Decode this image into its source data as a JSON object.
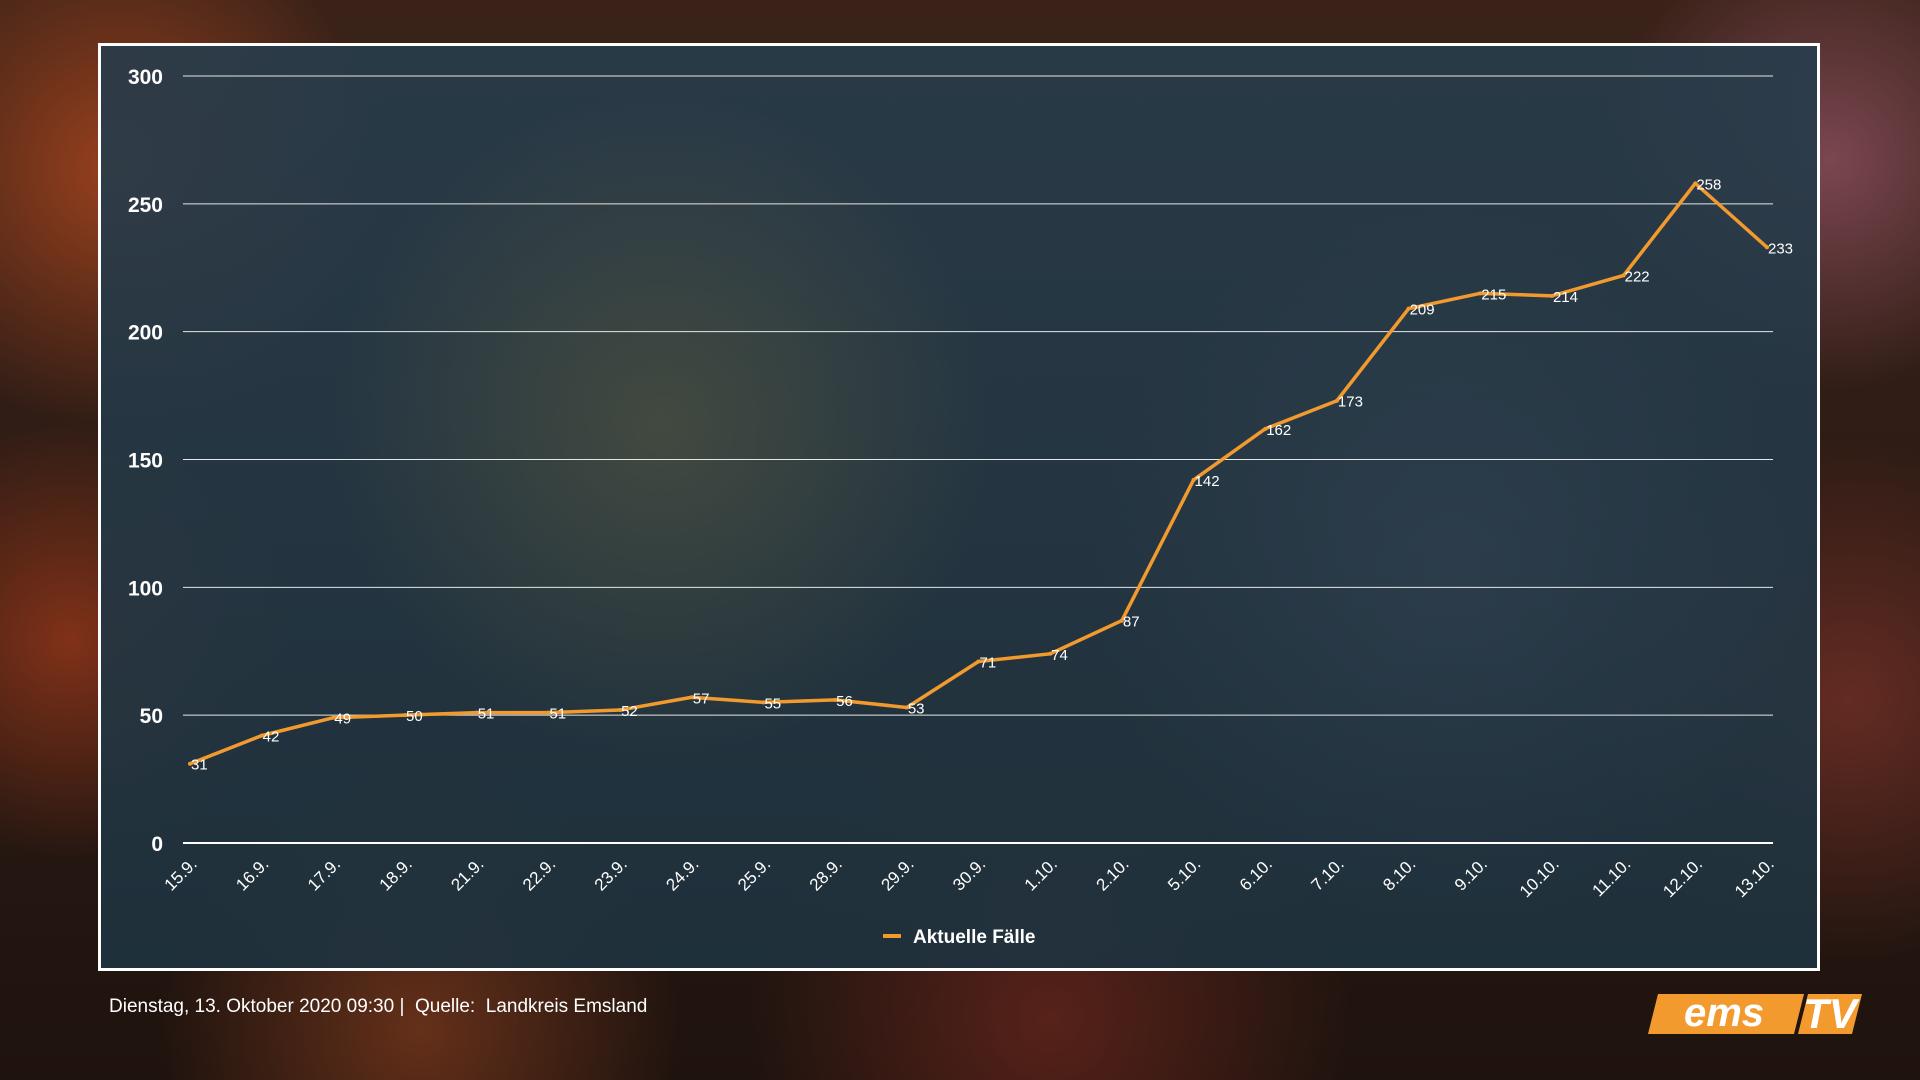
{
  "footer": {
    "date": "Dienstag, 13. Oktober 2020 09:30",
    "separator": "|",
    "source_label": "Quelle:",
    "source": "Landkreis Emsland"
  },
  "logo": {
    "part1": "ems",
    "part2": "TV",
    "accent_color": "#f39a2e"
  },
  "chart_data": {
    "type": "line",
    "categories": [
      "15.9.",
      "16.9.",
      "17.9.",
      "18.9.",
      "21.9.",
      "22.9.",
      "23.9.",
      "24.9.",
      "25.9.",
      "28.9.",
      "29.9.",
      "30.9.",
      "1.10.",
      "2.10.",
      "5.10.",
      "6.10.",
      "7.10.",
      "8.10.",
      "9.10.",
      "10.10.",
      "11.10.",
      "12.10.",
      "13.10."
    ],
    "series": [
      {
        "name": "Aktuelle Fälle",
        "values": [
          31,
          42,
          49,
          50,
          51,
          51,
          52,
          57,
          55,
          56,
          53,
          71,
          74,
          87,
          142,
          162,
          173,
          209,
          215,
          214,
          222,
          258,
          233
        ],
        "color": "#f39a2e"
      }
    ],
    "ylim": [
      0,
      300
    ],
    "yticks": [
      0,
      50,
      100,
      150,
      200,
      250,
      300
    ],
    "grid": true,
    "legend": "bottom-center",
    "data_labels": true
  }
}
